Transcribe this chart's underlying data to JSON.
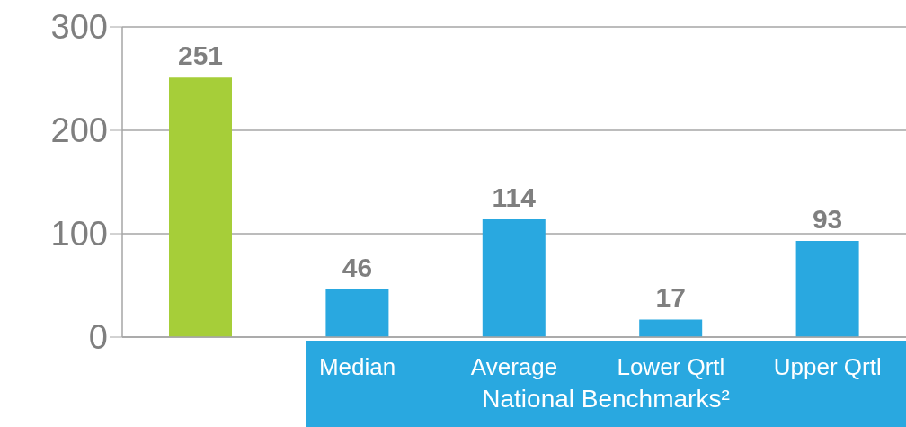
{
  "chart_data": {
    "type": "bar",
    "categories": [
      null,
      "Median",
      "Average",
      "Lower Qrtl",
      "Upper Qrtl"
    ],
    "values": [
      251,
      46,
      114,
      17,
      93
    ],
    "colors": [
      "#a6ce39",
      "#29a8e0",
      "#29a8e0",
      "#29a8e0",
      "#29a8e0"
    ],
    "ylim": [
      0,
      300
    ],
    "yticks": [
      0,
      100,
      200,
      300
    ],
    "grid": "y",
    "data_labels": true,
    "annotations": [
      "National Benchmarks²"
    ]
  }
}
